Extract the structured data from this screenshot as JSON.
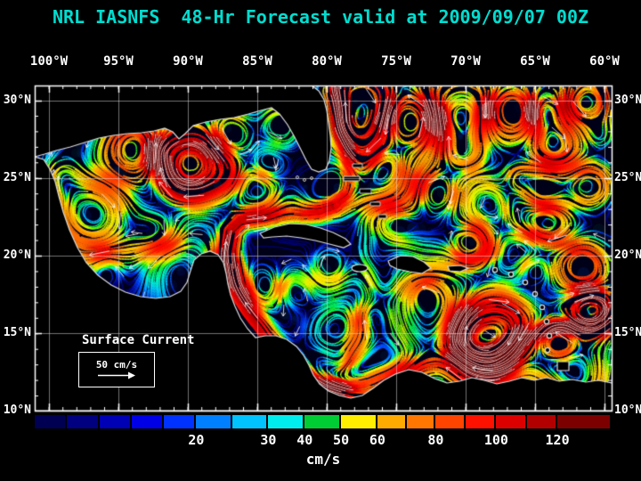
{
  "title": "NRL IASNFS  48-Hr Forecast valid at 2009/09/07 00Z",
  "title_color": "#00ddd0",
  "axes": {
    "lon_labels": [
      "100°W",
      "95°W",
      "90°W",
      "85°W",
      "80°W",
      "75°W",
      "70°W",
      "65°W",
      "60°W"
    ],
    "lat_labels": [
      "30°N",
      "25°N",
      "20°N",
      "15°N",
      "10°N"
    ]
  },
  "legend": {
    "title": "Surface Current",
    "scale_label": "50 cm/s"
  },
  "colorbar": {
    "unit": "cm/s",
    "ticks": [
      {
        "value": "20",
        "f": 0.28
      },
      {
        "value": "30",
        "f": 0.405
      },
      {
        "value": "40",
        "f": 0.468
      },
      {
        "value": "50",
        "f": 0.531
      },
      {
        "value": "60",
        "f": 0.594
      },
      {
        "value": "80",
        "f": 0.695
      },
      {
        "value": "100",
        "f": 0.8
      },
      {
        "value": "120",
        "f": 0.906
      }
    ],
    "segments": [
      {
        "f0": 0.0,
        "f1": 0.056,
        "color": "#000052"
      },
      {
        "f0": 0.056,
        "f1": 0.112,
        "color": "#000080"
      },
      {
        "f0": 0.112,
        "f1": 0.168,
        "color": "#0000b4"
      },
      {
        "f0": 0.168,
        "f1": 0.224,
        "color": "#0000e6"
      },
      {
        "f0": 0.224,
        "f1": 0.28,
        "color": "#0032ff"
      },
      {
        "f0": 0.28,
        "f1": 0.3425,
        "color": "#0080ff"
      },
      {
        "f0": 0.3425,
        "f1": 0.405,
        "color": "#00c3ff"
      },
      {
        "f0": 0.405,
        "f1": 0.468,
        "color": "#00eded"
      },
      {
        "f0": 0.468,
        "f1": 0.531,
        "color": "#00cc33"
      },
      {
        "f0": 0.531,
        "f1": 0.594,
        "color": "#ffee00"
      },
      {
        "f0": 0.594,
        "f1": 0.6445,
        "color": "#ffaa00"
      },
      {
        "f0": 0.6445,
        "f1": 0.695,
        "color": "#ff7700"
      },
      {
        "f0": 0.695,
        "f1": 0.7475,
        "color": "#ff4400"
      },
      {
        "f0": 0.7475,
        "f1": 0.8,
        "color": "#ff1100"
      },
      {
        "f0": 0.8,
        "f1": 0.853,
        "color": "#dd0000"
      },
      {
        "f0": 0.853,
        "f1": 0.906,
        "color": "#b20000"
      },
      {
        "f0": 0.906,
        "f1": 1.0,
        "color": "#7d0000"
      }
    ]
  }
}
